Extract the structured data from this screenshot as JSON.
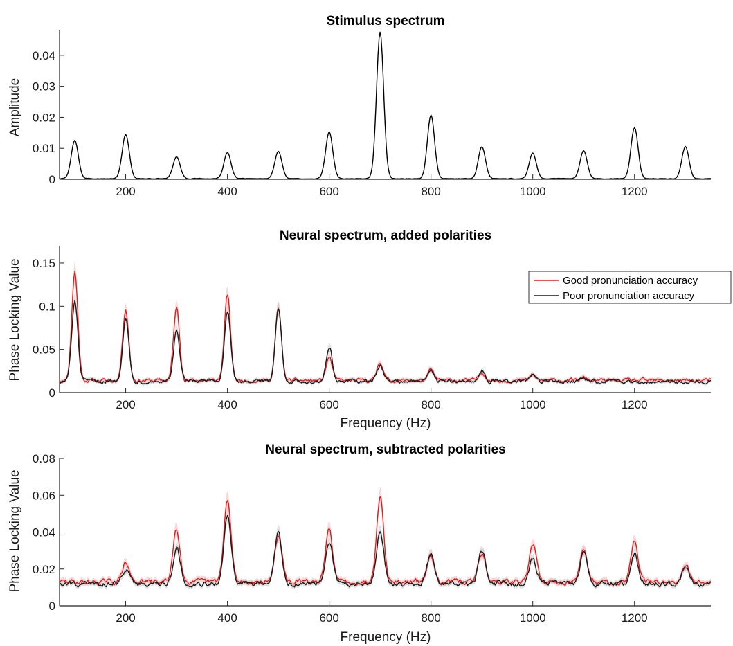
{
  "chart_data": [
    {
      "type": "line",
      "title": "Stimulus spectrum",
      "xlabel": "",
      "ylabel": "Amplitude",
      "xlim": [
        70,
        1350
      ],
      "ylim": [
        0,
        0.048
      ],
      "xticks": [
        200,
        400,
        600,
        800,
        1000,
        1200
      ],
      "yticks": [
        0,
        0.01,
        0.02,
        0.03,
        0.04
      ],
      "ytick_labels": [
        "0",
        "0.01",
        "0.02",
        "0.03",
        "0.04"
      ],
      "grid": false,
      "series": [
        {
          "color": "#000000",
          "peaks": [
            {
              "x": 100,
              "y": 0.0125
            },
            {
              "x": 200,
              "y": 0.0145
            },
            {
              "x": 300,
              "y": 0.0073
            },
            {
              "x": 400,
              "y": 0.0086
            },
            {
              "x": 500,
              "y": 0.009
            },
            {
              "x": 600,
              "y": 0.0153
            },
            {
              "x": 700,
              "y": 0.0475
            },
            {
              "x": 800,
              "y": 0.0208
            },
            {
              "x": 900,
              "y": 0.0105
            },
            {
              "x": 1000,
              "y": 0.0085
            },
            {
              "x": 1100,
              "y": 0.0093
            },
            {
              "x": 1200,
              "y": 0.0167
            },
            {
              "x": 1300,
              "y": 0.0106
            }
          ],
          "baseline": 0.0002
        }
      ]
    },
    {
      "type": "line",
      "title": "Neural spectrum, added polarities",
      "xlabel": "Frequency (Hz)",
      "ylabel": "Phase Locking Value",
      "xlim": [
        70,
        1350
      ],
      "ylim": [
        0,
        0.17
      ],
      "xticks": [
        200,
        400,
        600,
        800,
        1000,
        1200
      ],
      "yticks": [
        0,
        0.05,
        0.1,
        0.15
      ],
      "ytick_labels": [
        "0",
        "0.05",
        "0.1",
        "0.15"
      ],
      "grid": false,
      "legend": "top-right",
      "series": [
        {
          "name": "Good pronunciation accuracy",
          "color": "#e8191b",
          "band_color": "#f3b9ba",
          "peaks": [
            {
              "x": 100,
              "y": 0.14
            },
            {
              "x": 200,
              "y": 0.097
            },
            {
              "x": 300,
              "y": 0.098
            },
            {
              "x": 400,
              "y": 0.113
            },
            {
              "x": 500,
              "y": 0.097
            },
            {
              "x": 600,
              "y": 0.041
            },
            {
              "x": 700,
              "y": 0.036
            },
            {
              "x": 800,
              "y": 0.026
            },
            {
              "x": 900,
              "y": 0.024
            },
            {
              "x": 1000,
              "y": 0.02
            },
            {
              "x": 1100,
              "y": 0.017
            }
          ],
          "baseline": 0.014
        },
        {
          "name": "Poor pronunciation accuracy",
          "color": "#1a1a1a",
          "band_color": "#c9c9c9",
          "peaks": [
            {
              "x": 100,
              "y": 0.105
            },
            {
              "x": 200,
              "y": 0.087
            },
            {
              "x": 300,
              "y": 0.071
            },
            {
              "x": 400,
              "y": 0.095
            },
            {
              "x": 500,
              "y": 0.098
            },
            {
              "x": 600,
              "y": 0.053
            },
            {
              "x": 700,
              "y": 0.032
            },
            {
              "x": 800,
              "y": 0.027
            },
            {
              "x": 900,
              "y": 0.026
            },
            {
              "x": 1000,
              "y": 0.021
            },
            {
              "x": 1100,
              "y": 0.016
            }
          ],
          "baseline": 0.013
        }
      ]
    },
    {
      "type": "line",
      "title": "Neural spectrum, subtracted polarities",
      "xlabel": "Frequency (Hz)",
      "ylabel": "Phase Locking Value",
      "xlim": [
        70,
        1350
      ],
      "ylim": [
        0,
        0.08
      ],
      "xticks": [
        200,
        400,
        600,
        800,
        1000,
        1200
      ],
      "yticks": [
        0,
        0.02,
        0.04,
        0.06,
        0.08
      ],
      "ytick_labels": [
        "0",
        "0.02",
        "0.04",
        "0.06",
        "0.08"
      ],
      "grid": false,
      "series": [
        {
          "name": "Good pronunciation accuracy",
          "color": "#e8191b",
          "band_color": "#f3b9ba",
          "peaks": [
            {
              "x": 200,
              "y": 0.023
            },
            {
              "x": 300,
              "y": 0.042
            },
            {
              "x": 400,
              "y": 0.057
            },
            {
              "x": 500,
              "y": 0.038
            },
            {
              "x": 600,
              "y": 0.041
            },
            {
              "x": 700,
              "y": 0.06
            },
            {
              "x": 800,
              "y": 0.028
            },
            {
              "x": 900,
              "y": 0.029
            },
            {
              "x": 1000,
              "y": 0.034
            },
            {
              "x": 1100,
              "y": 0.029
            },
            {
              "x": 1200,
              "y": 0.035
            },
            {
              "x": 1300,
              "y": 0.023
            }
          ],
          "baseline": 0.013
        },
        {
          "name": "Poor pronunciation accuracy",
          "color": "#1a1a1a",
          "band_color": "#c9c9c9",
          "peaks": [
            {
              "x": 200,
              "y": 0.02
            },
            {
              "x": 300,
              "y": 0.031
            },
            {
              "x": 400,
              "y": 0.049
            },
            {
              "x": 500,
              "y": 0.039
            },
            {
              "x": 600,
              "y": 0.034
            },
            {
              "x": 700,
              "y": 0.041
            },
            {
              "x": 800,
              "y": 0.029
            },
            {
              "x": 900,
              "y": 0.03
            },
            {
              "x": 1000,
              "y": 0.026
            },
            {
              "x": 1100,
              "y": 0.029
            },
            {
              "x": 1200,
              "y": 0.028
            },
            {
              "x": 1300,
              "y": 0.02
            }
          ],
          "baseline": 0.012
        }
      ]
    }
  ]
}
